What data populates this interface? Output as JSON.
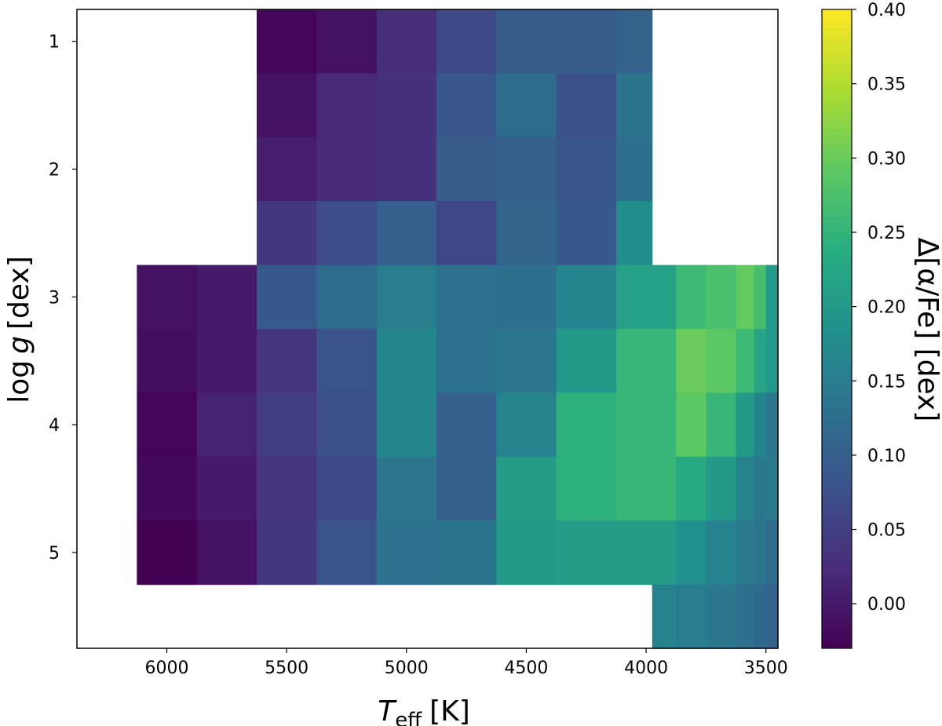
{
  "chart_data": {
    "type": "heatmap",
    "x_axis": {
      "label_main": "T",
      "label_sub": "eff",
      "label_unit": "[K]",
      "lim": [
        6375,
        3450
      ],
      "inverted": true,
      "ticks": [
        6000,
        5500,
        5000,
        4500,
        4000,
        3500
      ],
      "tick_labels": [
        "6000",
        "5500",
        "5000",
        "4500",
        "4000",
        "3500"
      ]
    },
    "y_axis": {
      "label_main": "log",
      "label_var": "g",
      "label_unit": "[dex]",
      "lim": [
        0.75,
        5.75
      ],
      "inverted": true,
      "ticks": [
        1,
        2,
        3,
        4,
        5
      ],
      "tick_labels": [
        "1",
        "2",
        "3",
        "4",
        "5"
      ]
    },
    "colorbar": {
      "label": "Δ[α/Fe] [dex]",
      "colormap": "viridis",
      "vmin": -0.03,
      "vmax": 0.4,
      "ticks": [
        0.0,
        0.05,
        0.1,
        0.15,
        0.2,
        0.25,
        0.3,
        0.35,
        0.4
      ],
      "tick_labels": [
        "0.00",
        "0.05",
        "0.10",
        "0.15",
        "0.20",
        "0.25",
        "0.30",
        "0.35",
        "0.40"
      ]
    },
    "cells": [
      {
        "x0": 5625,
        "x1": 5375,
        "y0": 0.75,
        "y1": 1.25,
        "value": -0.025
      },
      {
        "x0": 5375,
        "x1": 5125,
        "y0": 0.75,
        "y1": 1.25,
        "value": -0.01
      },
      {
        "x0": 5125,
        "x1": 4875,
        "y0": 0.75,
        "y1": 1.25,
        "value": 0.025
      },
      {
        "x0": 4875,
        "x1": 4625,
        "y0": 0.75,
        "y1": 1.25,
        "value": 0.065
      },
      {
        "x0": 4625,
        "x1": 4375,
        "y0": 0.75,
        "y1": 1.25,
        "value": 0.095
      },
      {
        "x0": 4375,
        "x1": 4125,
        "y0": 0.75,
        "y1": 1.25,
        "value": 0.095
      },
      {
        "x0": 4125,
        "x1": 3975,
        "y0": 0.75,
        "y1": 1.25,
        "value": 0.105
      },
      {
        "x0": 5625,
        "x1": 5375,
        "y0": 1.25,
        "y1": 1.75,
        "value": -0.01
      },
      {
        "x0": 5375,
        "x1": 5125,
        "y0": 1.25,
        "y1": 1.75,
        "value": 0.02
      },
      {
        "x0": 5125,
        "x1": 4875,
        "y0": 1.25,
        "y1": 1.75,
        "value": 0.03
      },
      {
        "x0": 4875,
        "x1": 4625,
        "y0": 1.25,
        "y1": 1.75,
        "value": 0.085
      },
      {
        "x0": 4625,
        "x1": 4375,
        "y0": 1.25,
        "y1": 1.75,
        "value": 0.12
      },
      {
        "x0": 4375,
        "x1": 4125,
        "y0": 1.25,
        "y1": 1.75,
        "value": 0.075
      },
      {
        "x0": 4125,
        "x1": 3975,
        "y0": 1.25,
        "y1": 1.75,
        "value": 0.135
      },
      {
        "x0": 5625,
        "x1": 5375,
        "y0": 1.75,
        "y1": 2.25,
        "value": 0.005
      },
      {
        "x0": 5375,
        "x1": 5125,
        "y0": 1.75,
        "y1": 2.25,
        "value": 0.02
      },
      {
        "x0": 5125,
        "x1": 4875,
        "y0": 1.75,
        "y1": 2.25,
        "value": 0.03
      },
      {
        "x0": 4875,
        "x1": 4625,
        "y0": 1.75,
        "y1": 2.25,
        "value": 0.095
      },
      {
        "x0": 4625,
        "x1": 4375,
        "y0": 1.75,
        "y1": 2.25,
        "value": 0.1
      },
      {
        "x0": 4375,
        "x1": 4125,
        "y0": 1.75,
        "y1": 2.25,
        "value": 0.085
      },
      {
        "x0": 4125,
        "x1": 3975,
        "y0": 1.75,
        "y1": 2.25,
        "value": 0.125
      },
      {
        "x0": 5625,
        "x1": 5375,
        "y0": 2.25,
        "y1": 2.75,
        "value": 0.04
      },
      {
        "x0": 5375,
        "x1": 5125,
        "y0": 2.25,
        "y1": 2.75,
        "value": 0.07
      },
      {
        "x0": 5125,
        "x1": 4875,
        "y0": 2.25,
        "y1": 2.75,
        "value": 0.1
      },
      {
        "x0": 4875,
        "x1": 4625,
        "y0": 2.25,
        "y1": 2.75,
        "value": 0.06
      },
      {
        "x0": 4625,
        "x1": 4375,
        "y0": 2.25,
        "y1": 2.75,
        "value": 0.11
      },
      {
        "x0": 4375,
        "x1": 4125,
        "y0": 2.25,
        "y1": 2.75,
        "value": 0.09
      },
      {
        "x0": 4125,
        "x1": 3975,
        "y0": 2.25,
        "y1": 2.75,
        "value": 0.18
      },
      {
        "x0": 6125,
        "x1": 5875,
        "y0": 2.75,
        "y1": 3.25,
        "value": -0.01
      },
      {
        "x0": 5875,
        "x1": 5625,
        "y0": 2.75,
        "y1": 3.25,
        "value": 0.0
      },
      {
        "x0": 5625,
        "x1": 5375,
        "y0": 2.75,
        "y1": 3.25,
        "value": 0.09
      },
      {
        "x0": 5375,
        "x1": 5125,
        "y0": 2.75,
        "y1": 3.25,
        "value": 0.12
      },
      {
        "x0": 5125,
        "x1": 4875,
        "y0": 2.75,
        "y1": 3.25,
        "value": 0.15
      },
      {
        "x0": 4875,
        "x1": 4625,
        "y0": 2.75,
        "y1": 3.25,
        "value": 0.13
      },
      {
        "x0": 4625,
        "x1": 4375,
        "y0": 2.75,
        "y1": 3.25,
        "value": 0.125
      },
      {
        "x0": 4375,
        "x1": 4125,
        "y0": 2.75,
        "y1": 3.25,
        "value": 0.165
      },
      {
        "x0": 4125,
        "x1": 3875,
        "y0": 2.75,
        "y1": 3.25,
        "value": 0.215
      },
      {
        "x0": 3875,
        "x1": 3750,
        "y0": 2.75,
        "y1": 3.25,
        "value": 0.26
      },
      {
        "x0": 3750,
        "x1": 3625,
        "y0": 2.75,
        "y1": 3.25,
        "value": 0.275
      },
      {
        "x0": 3625,
        "x1": 3550,
        "y0": 2.75,
        "y1": 3.25,
        "value": 0.295
      },
      {
        "x0": 3550,
        "x1": 3500,
        "y0": 2.75,
        "y1": 3.25,
        "value": 0.27
      },
      {
        "x0": 3500,
        "x1": 3450,
        "y0": 2.75,
        "y1": 3.25,
        "value": 0.2
      },
      {
        "x0": 6125,
        "x1": 5875,
        "y0": 3.25,
        "y1": 3.75,
        "value": -0.015
      },
      {
        "x0": 5875,
        "x1": 5625,
        "y0": 3.25,
        "y1": 3.75,
        "value": 0.0
      },
      {
        "x0": 5625,
        "x1": 5375,
        "y0": 3.25,
        "y1": 3.75,
        "value": 0.035
      },
      {
        "x0": 5375,
        "x1": 5125,
        "y0": 3.25,
        "y1": 3.75,
        "value": 0.08
      },
      {
        "x0": 5125,
        "x1": 4875,
        "y0": 3.25,
        "y1": 3.75,
        "value": 0.165
      },
      {
        "x0": 4875,
        "x1": 4625,
        "y0": 3.25,
        "y1": 3.75,
        "value": 0.13
      },
      {
        "x0": 4625,
        "x1": 4375,
        "y0": 3.25,
        "y1": 3.75,
        "value": 0.14
      },
      {
        "x0": 4375,
        "x1": 4125,
        "y0": 3.25,
        "y1": 3.75,
        "value": 0.2
      },
      {
        "x0": 4125,
        "x1": 3875,
        "y0": 3.25,
        "y1": 3.75,
        "value": 0.255
      },
      {
        "x0": 3875,
        "x1": 3750,
        "y0": 3.25,
        "y1": 3.75,
        "value": 0.3
      },
      {
        "x0": 3750,
        "x1": 3625,
        "y0": 3.25,
        "y1": 3.75,
        "value": 0.29
      },
      {
        "x0": 3625,
        "x1": 3550,
        "y0": 3.25,
        "y1": 3.75,
        "value": 0.26
      },
      {
        "x0": 3550,
        "x1": 3500,
        "y0": 3.25,
        "y1": 3.75,
        "value": 0.22
      },
      {
        "x0": 3500,
        "x1": 3450,
        "y0": 3.25,
        "y1": 3.75,
        "value": 0.2
      },
      {
        "x0": 6125,
        "x1": 5875,
        "y0": 3.75,
        "y1": 4.25,
        "value": -0.025
      },
      {
        "x0": 5875,
        "x1": 5625,
        "y0": 3.75,
        "y1": 4.25,
        "value": 0.01
      },
      {
        "x0": 5625,
        "x1": 5375,
        "y0": 3.75,
        "y1": 4.25,
        "value": 0.045
      },
      {
        "x0": 5375,
        "x1": 5125,
        "y0": 3.75,
        "y1": 4.25,
        "value": 0.075
      },
      {
        "x0": 5125,
        "x1": 4875,
        "y0": 3.75,
        "y1": 4.25,
        "value": 0.165
      },
      {
        "x0": 4875,
        "x1": 4625,
        "y0": 3.75,
        "y1": 4.25,
        "value": 0.1
      },
      {
        "x0": 4625,
        "x1": 4375,
        "y0": 3.75,
        "y1": 4.25,
        "value": 0.16
      },
      {
        "x0": 4375,
        "x1": 4125,
        "y0": 3.75,
        "y1": 4.25,
        "value": 0.245
      },
      {
        "x0": 4125,
        "x1": 3875,
        "y0": 3.75,
        "y1": 4.25,
        "value": 0.255
      },
      {
        "x0": 3875,
        "x1": 3750,
        "y0": 3.75,
        "y1": 4.25,
        "value": 0.29
      },
      {
        "x0": 3750,
        "x1": 3625,
        "y0": 3.75,
        "y1": 4.25,
        "value": 0.255
      },
      {
        "x0": 3625,
        "x1": 3550,
        "y0": 3.75,
        "y1": 4.25,
        "value": 0.2
      },
      {
        "x0": 3550,
        "x1": 3500,
        "y0": 3.75,
        "y1": 4.25,
        "value": 0.165
      },
      {
        "x0": 3500,
        "x1": 3450,
        "y0": 3.75,
        "y1": 4.25,
        "value": 0.14
      },
      {
        "x0": 6125,
        "x1": 5875,
        "y0": 4.25,
        "y1": 4.75,
        "value": -0.02
      },
      {
        "x0": 5875,
        "x1": 5625,
        "y0": 4.25,
        "y1": 4.75,
        "value": 0.0
      },
      {
        "x0": 5625,
        "x1": 5375,
        "y0": 4.25,
        "y1": 4.75,
        "value": 0.035
      },
      {
        "x0": 5375,
        "x1": 5125,
        "y0": 4.25,
        "y1": 4.75,
        "value": 0.065
      },
      {
        "x0": 5125,
        "x1": 4875,
        "y0": 4.25,
        "y1": 4.75,
        "value": 0.14
      },
      {
        "x0": 4875,
        "x1": 4625,
        "y0": 4.25,
        "y1": 4.75,
        "value": 0.1
      },
      {
        "x0": 4625,
        "x1": 4375,
        "y0": 4.25,
        "y1": 4.75,
        "value": 0.205
      },
      {
        "x0": 4375,
        "x1": 4125,
        "y0": 4.25,
        "y1": 4.75,
        "value": 0.245
      },
      {
        "x0": 4125,
        "x1": 3875,
        "y0": 4.25,
        "y1": 4.75,
        "value": 0.255
      },
      {
        "x0": 3875,
        "x1": 3750,
        "y0": 4.25,
        "y1": 4.75,
        "value": 0.23
      },
      {
        "x0": 3750,
        "x1": 3625,
        "y0": 4.25,
        "y1": 4.75,
        "value": 0.2
      },
      {
        "x0": 3625,
        "x1": 3550,
        "y0": 4.25,
        "y1": 4.75,
        "value": 0.16
      },
      {
        "x0": 3550,
        "x1": 3500,
        "y0": 4.25,
        "y1": 4.75,
        "value": 0.14
      },
      {
        "x0": 3500,
        "x1": 3450,
        "y0": 4.25,
        "y1": 4.75,
        "value": 0.145
      },
      {
        "x0": 6125,
        "x1": 5875,
        "y0": 4.75,
        "y1": 5.25,
        "value": -0.03
      },
      {
        "x0": 5875,
        "x1": 5625,
        "y0": 4.75,
        "y1": 5.25,
        "value": -0.01
      },
      {
        "x0": 5625,
        "x1": 5375,
        "y0": 4.75,
        "y1": 5.25,
        "value": 0.04
      },
      {
        "x0": 5375,
        "x1": 5125,
        "y0": 4.75,
        "y1": 5.25,
        "value": 0.08
      },
      {
        "x0": 5125,
        "x1": 4875,
        "y0": 4.75,
        "y1": 5.25,
        "value": 0.13
      },
      {
        "x0": 4875,
        "x1": 4625,
        "y0": 4.75,
        "y1": 5.25,
        "value": 0.135
      },
      {
        "x0": 4625,
        "x1": 4375,
        "y0": 4.75,
        "y1": 5.25,
        "value": 0.2
      },
      {
        "x0": 4375,
        "x1": 4125,
        "y0": 4.75,
        "y1": 5.25,
        "value": 0.205
      },
      {
        "x0": 4125,
        "x1": 3875,
        "y0": 4.75,
        "y1": 5.25,
        "value": 0.205
      },
      {
        "x0": 3875,
        "x1": 3750,
        "y0": 4.75,
        "y1": 5.25,
        "value": 0.185
      },
      {
        "x0": 3750,
        "x1": 3625,
        "y0": 4.75,
        "y1": 5.25,
        "value": 0.16
      },
      {
        "x0": 3625,
        "x1": 3550,
        "y0": 4.75,
        "y1": 5.25,
        "value": 0.145
      },
      {
        "x0": 3550,
        "x1": 3500,
        "y0": 4.75,
        "y1": 5.25,
        "value": 0.135
      },
      {
        "x0": 3500,
        "x1": 3450,
        "y0": 4.75,
        "y1": 5.25,
        "value": 0.12
      },
      {
        "x0": 3975,
        "x1": 3875,
        "y0": 5.25,
        "y1": 5.75,
        "value": 0.16
      },
      {
        "x0": 3875,
        "x1": 3750,
        "y0": 5.25,
        "y1": 5.75,
        "value": 0.15
      },
      {
        "x0": 3750,
        "x1": 3625,
        "y0": 5.25,
        "y1": 5.75,
        "value": 0.14
      },
      {
        "x0": 3625,
        "x1": 3550,
        "y0": 5.25,
        "y1": 5.75,
        "value": 0.125
      },
      {
        "x0": 3550,
        "x1": 3500,
        "y0": 5.25,
        "y1": 5.75,
        "value": 0.115
      },
      {
        "x0": 3500,
        "x1": 3450,
        "y0": 5.25,
        "y1": 5.75,
        "value": 0.105
      }
    ]
  }
}
